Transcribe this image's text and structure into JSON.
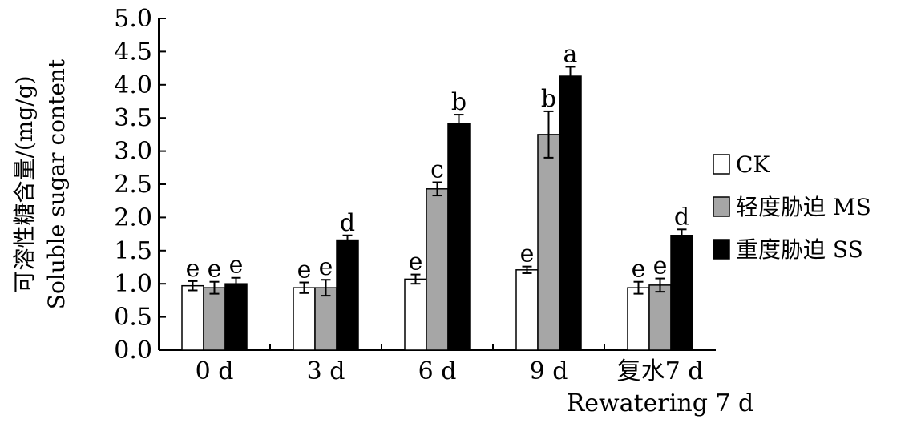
{
  "chart_data": {
    "type": "bar",
    "ylabel_cn": "可溶性糖含量/(mg/g)",
    "ylabel_en": "Soluble sugar content",
    "ylim": [
      0,
      5.0
    ],
    "yticks": [
      "0.0",
      "0.5",
      "1.0",
      "1.5",
      "2.0",
      "2.5",
      "3.0",
      "3.5",
      "4.0",
      "4.5",
      "5.0"
    ],
    "categories": [
      "0 d",
      "3 d",
      "6 d",
      "9 d",
      "复水7 d"
    ],
    "category_sub": [
      "",
      "",
      "",
      "",
      "Rewatering 7 d"
    ],
    "legend_position": "right",
    "series": [
      {
        "name": "CK",
        "color": "#ffffff",
        "values": [
          0.97,
          0.94,
          1.07,
          1.21,
          0.94
        ],
        "errors": [
          0.07,
          0.08,
          0.07,
          0.05,
          0.09
        ],
        "letters": [
          "e",
          "e",
          "e",
          "e",
          "e"
        ]
      },
      {
        "name": "轻度胁迫 MS",
        "color": "#a6a6a6",
        "values": [
          0.94,
          0.94,
          2.43,
          3.25,
          0.98
        ],
        "errors": [
          0.09,
          0.12,
          0.1,
          0.35,
          0.1
        ],
        "letters": [
          "e",
          "e",
          "c",
          "b",
          "e"
        ]
      },
      {
        "name": "重度胁迫 SS",
        "color": "#000000",
        "values": [
          1.0,
          1.66,
          3.42,
          4.13,
          1.73
        ],
        "errors": [
          0.09,
          0.07,
          0.13,
          0.14,
          0.09
        ],
        "letters": [
          "e",
          "d",
          "b",
          "a",
          "d"
        ]
      }
    ]
  }
}
